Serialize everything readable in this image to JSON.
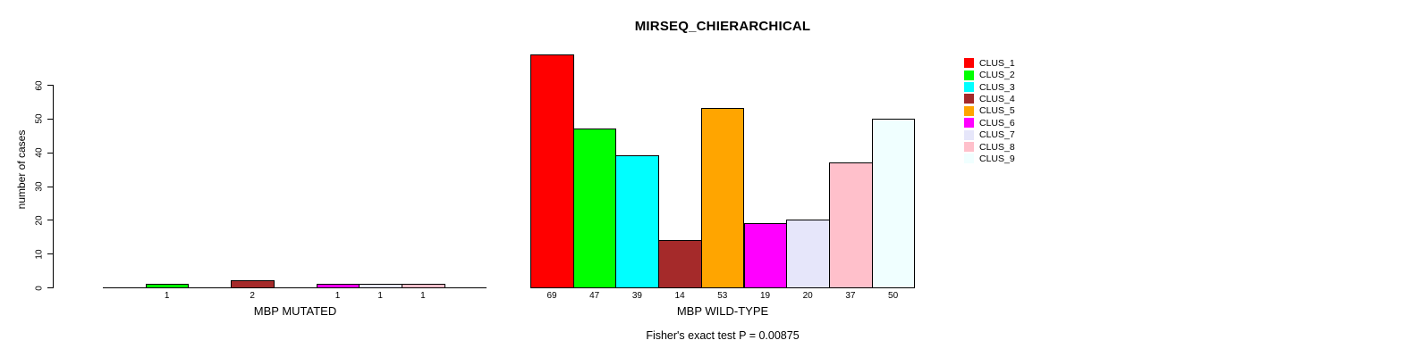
{
  "background": "#ffffff",
  "chart_data": {
    "type": "bar",
    "title": "MIRSEQ_CHIERARCHICAL",
    "ylabel": "number of cases",
    "annotation": "Fisher's exact test P = 0.00875",
    "ylim": [
      0,
      60
    ],
    "yticks": [
      0,
      10,
      20,
      30,
      40,
      50,
      60
    ],
    "grid": false,
    "legend_position": "right",
    "legend": [
      {
        "label": "CLUS_1",
        "color": "#FF0000"
      },
      {
        "label": "CLUS_2",
        "color": "#00FF00"
      },
      {
        "label": "CLUS_3",
        "color": "#00FFFF"
      },
      {
        "label": "CLUS_4",
        "color": "#A52A2A"
      },
      {
        "label": "CLUS_5",
        "color": "#FFA500"
      },
      {
        "label": "CLUS_6",
        "color": "#FF00FF"
      },
      {
        "label": "CLUS_7",
        "color": "#E6E6FA"
      },
      {
        "label": "CLUS_8",
        "color": "#FFC0CB"
      },
      {
        "label": "CLUS_9",
        "color": "#F0FFFF"
      }
    ],
    "panels": [
      {
        "xlabel": "MBP MUTATED",
        "categories": [
          "CLUS_1",
          "CLUS_2",
          "CLUS_3",
          "CLUS_4",
          "CLUS_5",
          "CLUS_6",
          "CLUS_7",
          "CLUS_8",
          "CLUS_9"
        ],
        "values": [
          0,
          1,
          0,
          2,
          0,
          1,
          1,
          1,
          0
        ],
        "bar_labels": [
          "",
          "1",
          "",
          "2",
          "",
          "1",
          "1",
          "1",
          ""
        ]
      },
      {
        "xlabel": "MBP WILD-TYPE",
        "categories": [
          "CLUS_1",
          "CLUS_2",
          "CLUS_3",
          "CLUS_4",
          "CLUS_5",
          "CLUS_6",
          "CLUS_7",
          "CLUS_8",
          "CLUS_9"
        ],
        "values": [
          69,
          47,
          39,
          14,
          53,
          19,
          20,
          37,
          50
        ],
        "bar_labels": [
          "69",
          "47",
          "39",
          "14",
          "53",
          "19",
          "20",
          "37",
          "50"
        ]
      }
    ],
    "bar_border_color": "#000000"
  }
}
